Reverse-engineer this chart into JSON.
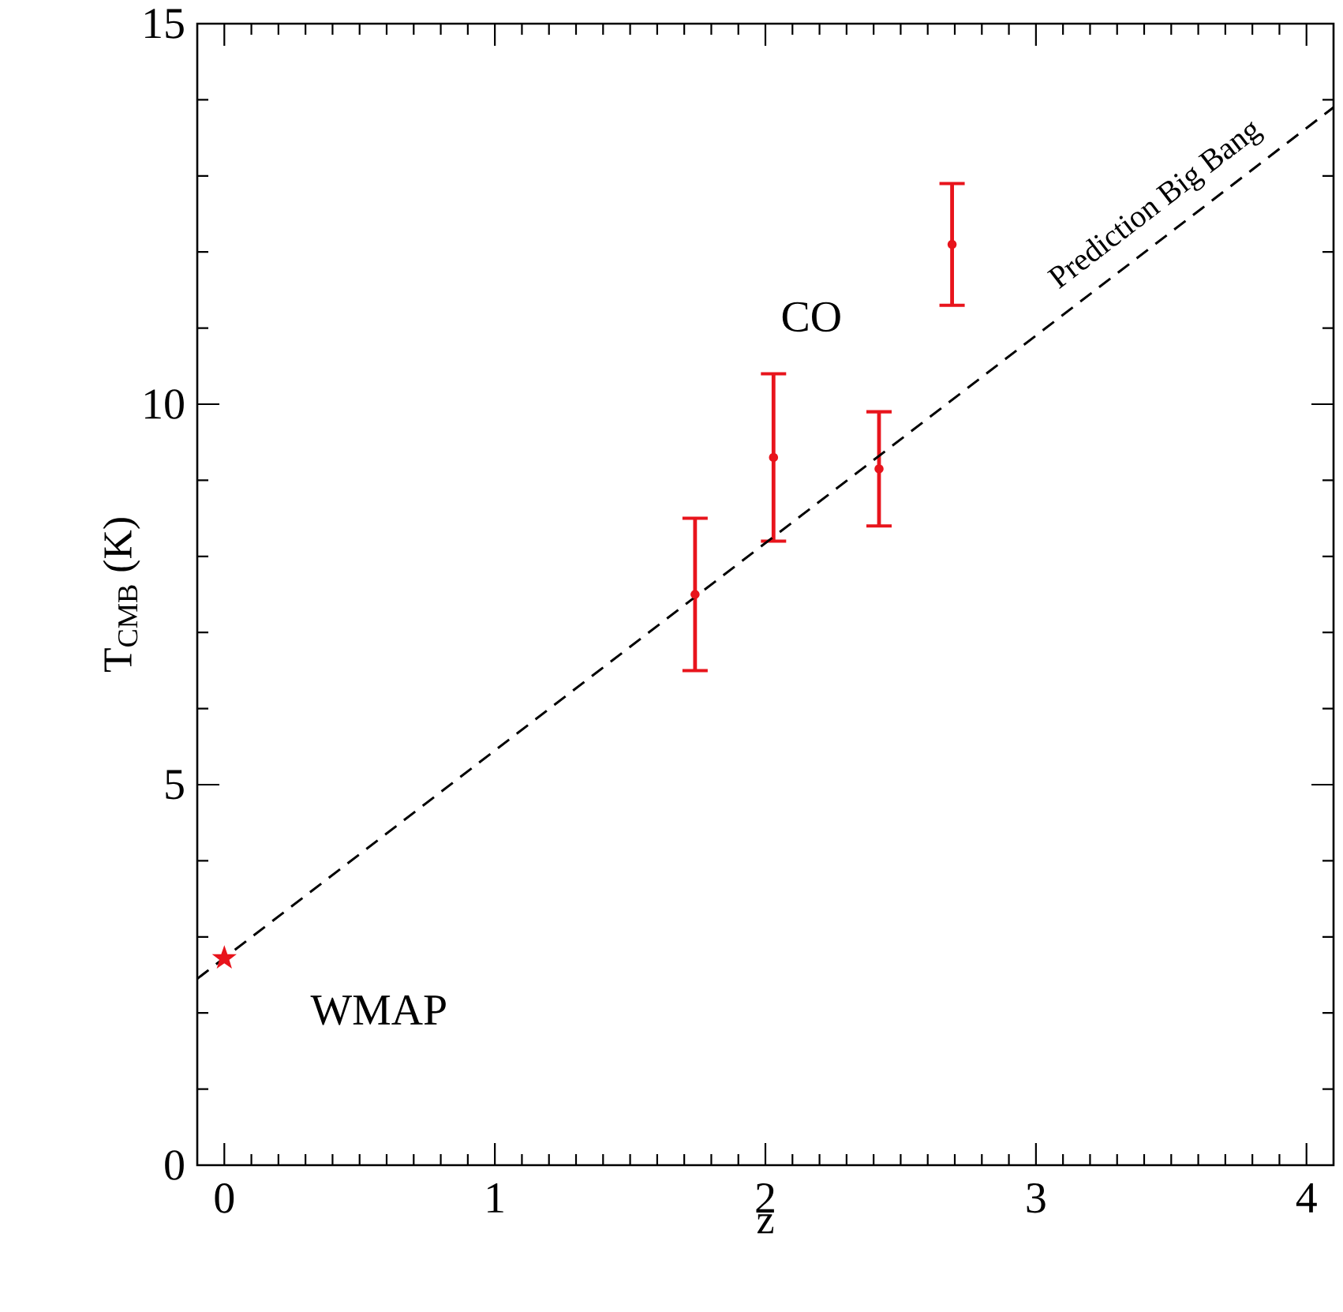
{
  "chart_data": {
    "type": "scatter",
    "xlabel": "z",
    "ylabel": "T$_{CMB}$ (K)",
    "xlim": [
      -0.1,
      4.1
    ],
    "ylim": [
      0,
      15
    ],
    "xticks": [
      0,
      1,
      2,
      3,
      4
    ],
    "yticks": [
      0,
      5,
      10,
      15
    ],
    "annotations": [
      {
        "text": "WMAP",
        "x": 0,
        "y": 2.72
      },
      {
        "text": "CO",
        "x": 2.03,
        "y": 10.4
      }
    ],
    "series": [
      {
        "marker": "star",
        "color": "#e8141c",
        "x": [
          0
        ],
        "values": [
          2.72
        ]
      },
      {
        "marker": "circle",
        "color": "#e8141c",
        "x": [
          1.74,
          2.03,
          2.42,
          2.69
        ],
        "values": [
          7.5,
          9.3,
          9.15,
          12.1
        ],
        "errors": [
          [
            6.5,
            8.5
          ],
          [
            8.2,
            10.4
          ],
          [
            8.4,
            9.9
          ],
          [
            11.3,
            12.9
          ]
        ]
      },
      {
        "name": "Prediction Big Bang",
        "type": "line",
        "line_style": "dashed",
        "color": "#000000",
        "x": [
          -0.1,
          4.1
        ],
        "values": [
          2.45,
          13.9
        ]
      }
    ]
  }
}
